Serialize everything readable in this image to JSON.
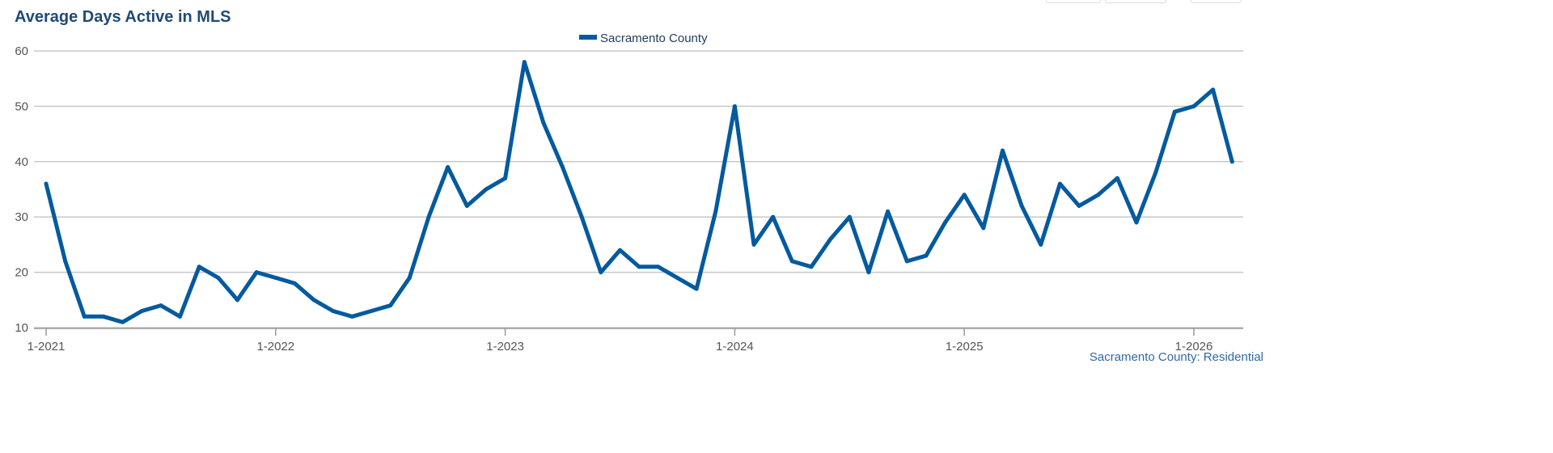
{
  "header": {
    "title": "Average Days Active in MLS"
  },
  "chart_data": {
    "type": "line",
    "title": "Average Days Active in MLS",
    "xlabel": "",
    "ylabel": "",
    "ylim": [
      10,
      60
    ],
    "yticks": [
      "10",
      "20",
      "30",
      "40",
      "50",
      "60"
    ],
    "xticks": [
      "1-2021",
      "1-2022",
      "1-2023",
      "1-2024",
      "1-2025",
      "1-2026"
    ],
    "grid": true,
    "legend_placement": "top-center",
    "source_label": "Sacramento County: Residential",
    "color": "#045a9f",
    "start": "1-2021",
    "series": [
      {
        "name": "Sacramento County",
        "values": [
          36,
          22,
          12,
          12,
          11,
          13,
          14,
          12,
          21,
          19,
          15,
          20,
          19,
          18,
          15,
          13,
          12,
          13,
          14,
          19,
          30,
          39,
          32,
          35,
          37,
          58,
          47,
          39,
          30,
          20,
          24,
          21,
          21,
          19,
          17,
          31,
          50,
          25,
          30,
          22,
          21,
          26,
          30,
          20,
          31,
          22,
          23,
          29,
          34,
          28,
          42,
          32,
          25,
          36,
          32,
          34,
          37,
          29,
          38,
          49,
          50,
          53,
          40
        ]
      }
    ]
  }
}
